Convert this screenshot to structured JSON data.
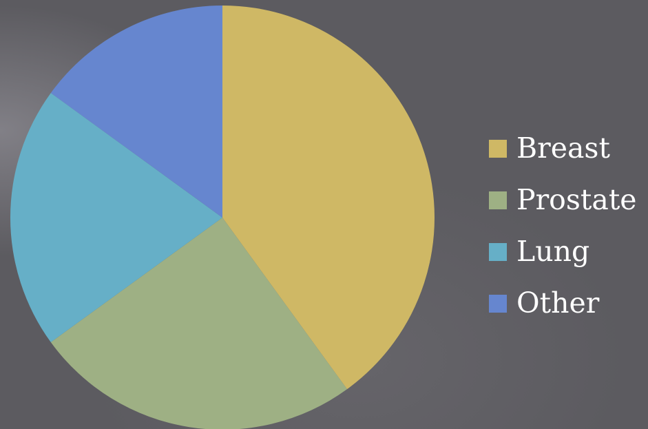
{
  "chart_data": {
    "type": "pie",
    "title": "",
    "categories": [
      "Breast",
      "Prostate",
      "Lung",
      "Other"
    ],
    "values": [
      40,
      25,
      20,
      15
    ],
    "colors": [
      "#cfb865",
      "#9eb084",
      "#66afc7",
      "#6686cf"
    ],
    "legend_position": "right",
    "start_angle": "12 o'clock",
    "direction": "clockwise"
  }
}
